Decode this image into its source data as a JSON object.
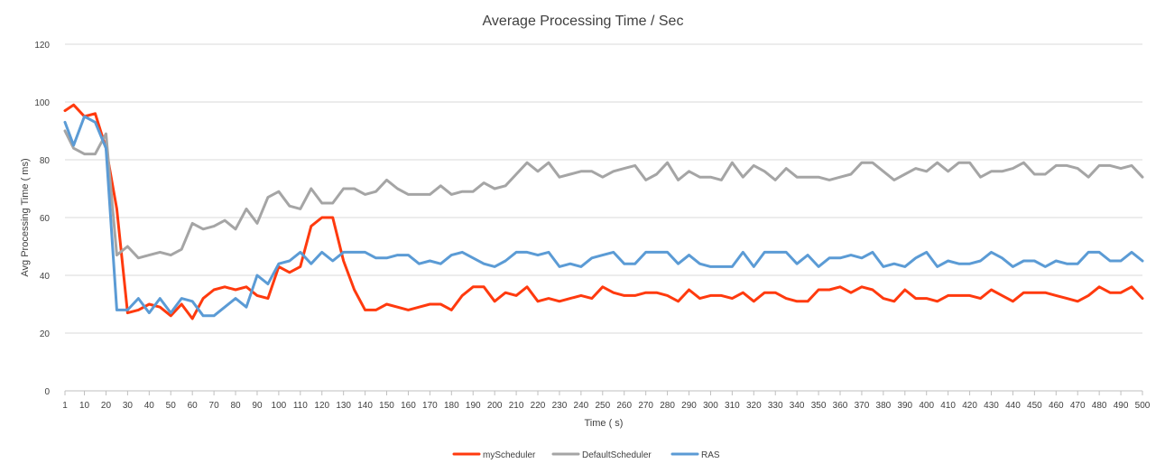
{
  "chart_data": {
    "type": "line",
    "title": "Average Processing Time /  Sec",
    "xlabel": "Time ( s)",
    "ylabel": "Avg Processing Time ( ms)",
    "ylim": [
      0,
      120
    ],
    "yticks": [
      0,
      20,
      40,
      60,
      80,
      100,
      120
    ],
    "grid": true,
    "legend_position": "bottom",
    "x": [
      1,
      5,
      10,
      15,
      20,
      25,
      30,
      35,
      40,
      45,
      50,
      55,
      60,
      65,
      70,
      75,
      80,
      85,
      90,
      95,
      100,
      105,
      110,
      115,
      120,
      125,
      130,
      135,
      140,
      145,
      150,
      155,
      160,
      165,
      170,
      175,
      180,
      185,
      190,
      195,
      200,
      205,
      210,
      215,
      220,
      225,
      230,
      235,
      240,
      245,
      250,
      255,
      260,
      265,
      270,
      275,
      280,
      285,
      290,
      295,
      300,
      305,
      310,
      315,
      320,
      325,
      330,
      335,
      340,
      345,
      350,
      355,
      360,
      365,
      370,
      375,
      380,
      385,
      390,
      395,
      400,
      405,
      410,
      415,
      420,
      425,
      430,
      435,
      440,
      445,
      450,
      455,
      460,
      465,
      470,
      475,
      480,
      485,
      490,
      495,
      500
    ],
    "x_tick_labels": [
      "1",
      "10",
      "20",
      "30",
      "40",
      "50",
      "60",
      "70",
      "80",
      "90",
      "100",
      "110",
      "120",
      "130",
      "140",
      "150",
      "160",
      "170",
      "180",
      "190",
      "200",
      "210",
      "220",
      "230",
      "240",
      "250",
      "260",
      "270",
      "280",
      "290",
      "300",
      "310",
      "320",
      "330",
      "340",
      "350",
      "360",
      "370",
      "380",
      "390",
      "400",
      "410",
      "420",
      "430",
      "440",
      "450",
      "460",
      "470",
      "480",
      "490",
      "500"
    ],
    "series": [
      {
        "name": "myScheduler",
        "color": "#ff3a0e",
        "values": [
          97,
          99,
          95,
          96,
          84,
          63,
          27,
          28,
          30,
          29,
          26,
          30,
          25,
          32,
          35,
          36,
          35,
          36,
          33,
          32,
          43,
          41,
          43,
          57,
          60,
          60,
          45,
          35,
          28,
          28,
          30,
          29,
          28,
          29,
          30,
          30,
          28,
          33,
          36,
          36,
          31,
          34,
          33,
          36,
          31,
          32,
          31,
          32,
          33,
          32,
          36,
          34,
          33,
          33,
          34,
          34,
          33,
          31,
          35,
          32,
          33,
          33,
          32,
          34,
          31,
          34,
          34,
          32,
          31,
          31,
          35,
          35,
          36,
          34,
          36,
          35,
          32,
          31,
          35,
          32,
          32,
          31,
          33,
          33,
          33,
          32,
          35,
          33,
          31,
          34,
          34,
          34,
          33,
          32,
          31,
          33,
          36,
          34,
          34,
          36,
          32
        ]
      },
      {
        "name": "DefaultScheduler",
        "color": "#a5a5a5",
        "values": [
          90,
          84,
          82,
          82,
          89,
          47,
          50,
          46,
          47,
          48,
          47,
          49,
          58,
          56,
          57,
          59,
          56,
          63,
          58,
          67,
          69,
          64,
          63,
          70,
          65,
          65,
          70,
          70,
          68,
          69,
          73,
          70,
          68,
          68,
          68,
          71,
          68,
          69,
          69,
          72,
          70,
          71,
          75,
          79,
          76,
          79,
          74,
          75,
          76,
          76,
          74,
          76,
          77,
          78,
          73,
          75,
          79,
          73,
          76,
          74,
          74,
          73,
          79,
          74,
          78,
          76,
          73,
          77,
          74,
          74,
          74,
          73,
          74,
          75,
          79,
          79,
          76,
          73,
          75,
          77,
          76,
          79,
          76,
          79,
          79,
          74,
          76,
          76,
          77,
          79,
          75,
          75,
          78,
          78,
          77,
          74,
          78,
          78,
          77,
          78,
          74
        ]
      },
      {
        "name": "RAS",
        "color": "#5b9bd5",
        "values": [
          93,
          85,
          95,
          93,
          84,
          28,
          28,
          32,
          27,
          32,
          27,
          32,
          31,
          26,
          26,
          29,
          32,
          29,
          40,
          37,
          44,
          45,
          48,
          44,
          48,
          45,
          48,
          48,
          48,
          46,
          46,
          47,
          47,
          44,
          45,
          44,
          47,
          48,
          46,
          44,
          43,
          45,
          48,
          48,
          47,
          48,
          43,
          44,
          43,
          46,
          47,
          48,
          44,
          44,
          48,
          48,
          48,
          44,
          47,
          44,
          43,
          43,
          43,
          48,
          43,
          48,
          48,
          48,
          44,
          47,
          43,
          46,
          46,
          47,
          46,
          48,
          43,
          44,
          43,
          46,
          48,
          43,
          45,
          44,
          44,
          45,
          48,
          46,
          43,
          45,
          45,
          43,
          45,
          44,
          44,
          48,
          48,
          45,
          45,
          48,
          45
        ]
      }
    ]
  }
}
